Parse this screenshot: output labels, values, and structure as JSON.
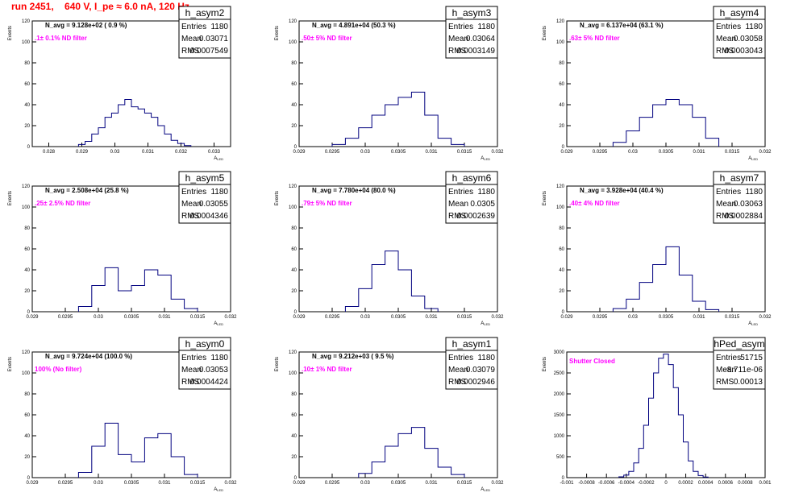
{
  "title": "run 2451,    640 V, I_pe ≈ 6.0 nA, 120 Hz",
  "chart_data": [
    {
      "type": "bar",
      "name": "h_asym2",
      "entries": "1180",
      "mean": "0.03071",
      "rms": "0.0007549",
      "navg": "N_avg = 9.128e+02 ( 0.9 %)",
      "filter": ".1± 0.1% ND filter",
      "xlabel": "A",
      "xlabel_sub": "LED",
      "ylabel": "Events",
      "xlim": [
        0.0275,
        0.0335
      ],
      "ylim": [
        0,
        120
      ],
      "xticks": [
        0.028,
        0.029,
        0.03,
        0.031,
        0.032,
        0.033
      ],
      "xticklabels": [
        "0.028",
        "0.029",
        "0.03",
        "0.031",
        "0.032",
        "0.033"
      ],
      "yticks": [
        0,
        20,
        40,
        60,
        80,
        100,
        120
      ],
      "x": [
        0.029,
        0.0292,
        0.0294,
        0.0296,
        0.0298,
        0.03,
        0.0302,
        0.0304,
        0.0306,
        0.0308,
        0.031,
        0.0312,
        0.0314,
        0.0316,
        0.0318,
        0.032,
        0.0322
      ],
      "values": [
        2,
        5,
        12,
        18,
        28,
        32,
        40,
        45,
        38,
        36,
        32,
        28,
        20,
        12,
        6,
        3,
        1
      ]
    },
    {
      "type": "bar",
      "name": "h_asym3",
      "entries": "1180",
      "mean": "0.03064",
      "rms": "0.0003149",
      "navg": "N_avg = 4.891e+04 (50.3 %)",
      "filter": ".50± 5% ND filter",
      "xlabel": "A",
      "xlabel_sub": "LED",
      "ylabel": "Events",
      "xlim": [
        0.029,
        0.032
      ],
      "ylim": [
        0,
        120
      ],
      "xticks": [
        0.029,
        0.0295,
        0.03,
        0.0305,
        0.031,
        0.0315,
        0.032
      ],
      "xticklabels": [
        "0.029",
        "0.0295",
        "0.03",
        "0.0305",
        "0.031",
        "0.0315",
        "0.032"
      ],
      "yticks": [
        0,
        20,
        40,
        60,
        80,
        100,
        120
      ],
      "x": [
        0.0296,
        0.0298,
        0.03,
        0.0302,
        0.0304,
        0.0306,
        0.0308,
        0.031,
        0.0312,
        0.0314
      ],
      "values": [
        2,
        8,
        18,
        30,
        40,
        47,
        52,
        30,
        8,
        2
      ]
    },
    {
      "type": "bar",
      "name": "h_asym4",
      "entries": "1180",
      "mean": "0.03058",
      "rms": "0.0003043",
      "navg": "N_avg = 6.137e+04 (63.1 %)",
      "filter": ".63± 5% ND filter",
      "xlabel": "A",
      "xlabel_sub": "LED",
      "ylabel": "Events",
      "xlim": [
        0.029,
        0.032
      ],
      "ylim": [
        0,
        120
      ],
      "xticks": [
        0.029,
        0.0295,
        0.03,
        0.0305,
        0.031,
        0.0315,
        0.032
      ],
      "xticklabels": [
        "0.029",
        "0.0295",
        "0.03",
        "0.0305",
        "0.031",
        "0.0315",
        "0.032"
      ],
      "yticks": [
        0,
        20,
        40,
        60,
        80,
        100,
        120
      ],
      "x": [
        0.0298,
        0.03,
        0.0302,
        0.0304,
        0.0306,
        0.0308,
        0.031,
        0.0312
      ],
      "values": [
        4,
        15,
        28,
        40,
        45,
        40,
        28,
        8
      ]
    },
    {
      "type": "bar",
      "name": "h_asym5",
      "entries": "1180",
      "mean": "0.03055",
      "rms": "0.0004346",
      "navg": "N_avg = 2.508e+04 (25.8 %)",
      "filter": ".25± 2.5% ND filter",
      "xlabel": "A",
      "xlabel_sub": "LED",
      "ylabel": "Events",
      "xlim": [
        0.029,
        0.032
      ],
      "ylim": [
        0,
        120
      ],
      "xticks": [
        0.029,
        0.0295,
        0.03,
        0.0305,
        0.031,
        0.0315,
        0.032
      ],
      "xticklabels": [
        "0.029",
        "0.0295",
        "0.03",
        "0.0305",
        "0.031",
        "0.0315",
        "0.032"
      ],
      "yticks": [
        0,
        20,
        40,
        60,
        80,
        100,
        120
      ],
      "x": [
        0.0298,
        0.03,
        0.0302,
        0.0304,
        0.0306,
        0.0308,
        0.031,
        0.0312,
        0.0314
      ],
      "values": [
        5,
        25,
        42,
        20,
        25,
        40,
        35,
        12,
        3
      ]
    },
    {
      "type": "bar",
      "name": "h_asym6",
      "entries": "1180",
      "mean": "0.0305",
      "rms": "0.0002639",
      "navg": "N_avg = 7.780e+04 (80.0 %)",
      "filter": ".79± 5% ND filter",
      "xlabel": "A",
      "xlabel_sub": "LED",
      "ylabel": "Events",
      "xlim": [
        0.029,
        0.032
      ],
      "ylim": [
        0,
        120
      ],
      "xticks": [
        0.029,
        0.0295,
        0.03,
        0.0305,
        0.031,
        0.0315,
        0.032
      ],
      "xticklabels": [
        "0.029",
        "0.0295",
        "0.03",
        "0.0305",
        "0.031",
        "0.0315",
        "0.032"
      ],
      "yticks": [
        0,
        20,
        40,
        60,
        80,
        100,
        120
      ],
      "x": [
        0.0298,
        0.03,
        0.0302,
        0.0304,
        0.0306,
        0.0308,
        0.031
      ],
      "values": [
        5,
        22,
        45,
        58,
        40,
        15,
        3
      ]
    },
    {
      "type": "bar",
      "name": "h_asym7",
      "entries": "1180",
      "mean": "0.03063",
      "rms": "0.0002884",
      "navg": "N_avg = 3.928e+04 (40.4 %)",
      "filter": ".40± 4% ND filter",
      "xlabel": "A",
      "xlabel_sub": "LED",
      "ylabel": "Events",
      "xlim": [
        0.029,
        0.032
      ],
      "ylim": [
        0,
        120
      ],
      "xticks": [
        0.029,
        0.0295,
        0.03,
        0.0305,
        0.031,
        0.0315,
        0.032
      ],
      "xticklabels": [
        "0.029",
        "0.0295",
        "0.03",
        "0.0305",
        "0.031",
        "0.0315",
        "0.032"
      ],
      "yticks": [
        0,
        20,
        40,
        60,
        80,
        100,
        120
      ],
      "x": [
        0.0298,
        0.03,
        0.0302,
        0.0304,
        0.0306,
        0.0308,
        0.031,
        0.0312
      ],
      "values": [
        3,
        12,
        28,
        45,
        62,
        35,
        10,
        2
      ]
    },
    {
      "type": "bar",
      "name": "h_asym0",
      "entries": "1180",
      "mean": "0.03053",
      "rms": "0.0004424",
      "navg": "N_avg = 9.724e+04 (100.0 %)",
      "filter": "100% (No filter)",
      "xlabel": "A",
      "xlabel_sub": "LED",
      "ylabel": "Events",
      "xlim": [
        0.029,
        0.032
      ],
      "ylim": [
        0,
        120
      ],
      "xticks": [
        0.029,
        0.0295,
        0.03,
        0.0305,
        0.031,
        0.0315,
        0.032
      ],
      "xticklabels": [
        "0.029",
        "0.0295",
        "0.03",
        "0.0305",
        "0.031",
        "0.0315",
        "0.032"
      ],
      "yticks": [
        0,
        20,
        40,
        60,
        80,
        100,
        120
      ],
      "x": [
        0.0298,
        0.03,
        0.0302,
        0.0304,
        0.0306,
        0.0308,
        0.031,
        0.0312,
        0.0314
      ],
      "values": [
        5,
        30,
        52,
        22,
        15,
        38,
        42,
        20,
        3
      ]
    },
    {
      "type": "bar",
      "name": "h_asym1",
      "entries": "1180",
      "mean": "0.03079",
      "rms": "0.0002946",
      "navg": "N_avg = 9.212e+03 ( 9.5 %)",
      "filter": ".10± 1% ND filter",
      "xlabel": "A",
      "xlabel_sub": "LED",
      "ylabel": "Events",
      "xlim": [
        0.029,
        0.032
      ],
      "ylim": [
        0,
        120
      ],
      "xticks": [
        0.029,
        0.0295,
        0.03,
        0.0305,
        0.031,
        0.0315,
        0.032
      ],
      "xticklabels": [
        "0.029",
        "0.0295",
        "0.03",
        "0.0305",
        "0.031",
        "0.0315",
        "0.032"
      ],
      "yticks": [
        0,
        20,
        40,
        60,
        80,
        100,
        120
      ],
      "x": [
        0.03,
        0.0302,
        0.0304,
        0.0306,
        0.0308,
        0.031,
        0.0312,
        0.0314
      ],
      "values": [
        4,
        15,
        30,
        42,
        48,
        28,
        10,
        3
      ]
    },
    {
      "type": "bar",
      "name": "hPed_asym",
      "entries": "51715",
      "mean": "-8.711e-06",
      "rms": "0.00013",
      "navg": "",
      "filter": "Shutter Closed",
      "xlabel": "",
      "xlabel_sub": "",
      "ylabel": "Events",
      "xlim": [
        -0.001,
        0.001
      ],
      "ylim": [
        0,
        3000
      ],
      "xticks": [
        -0.001,
        -0.0008,
        -0.0006,
        -0.0004,
        -0.0002,
        0,
        0.0002,
        0.0004,
        0.0006,
        0.0008,
        0.001
      ],
      "xticklabels": [
        "-0.001",
        "-0.0008",
        "-0.0006",
        "-0.0004",
        "-0.0002",
        "0",
        "0.0002",
        "0.0004",
        "0.0006",
        "0.0008",
        "0.001"
      ],
      "yticks": [
        0,
        500,
        1000,
        1500,
        2000,
        2500,
        3000
      ],
      "x": [
        -0.00045,
        -0.0004,
        -0.00035,
        -0.0003,
        -0.00025,
        -0.0002,
        -0.00015,
        -0.0001,
        -5e-05,
        0,
        5e-05,
        0.0001,
        0.00015,
        0.0002,
        0.00025,
        0.0003,
        0.00035,
        0.0004
      ],
      "values": [
        20,
        60,
        150,
        350,
        700,
        1250,
        1900,
        2500,
        2850,
        2950,
        2700,
        2150,
        1500,
        850,
        400,
        150,
        50,
        15
      ]
    }
  ]
}
